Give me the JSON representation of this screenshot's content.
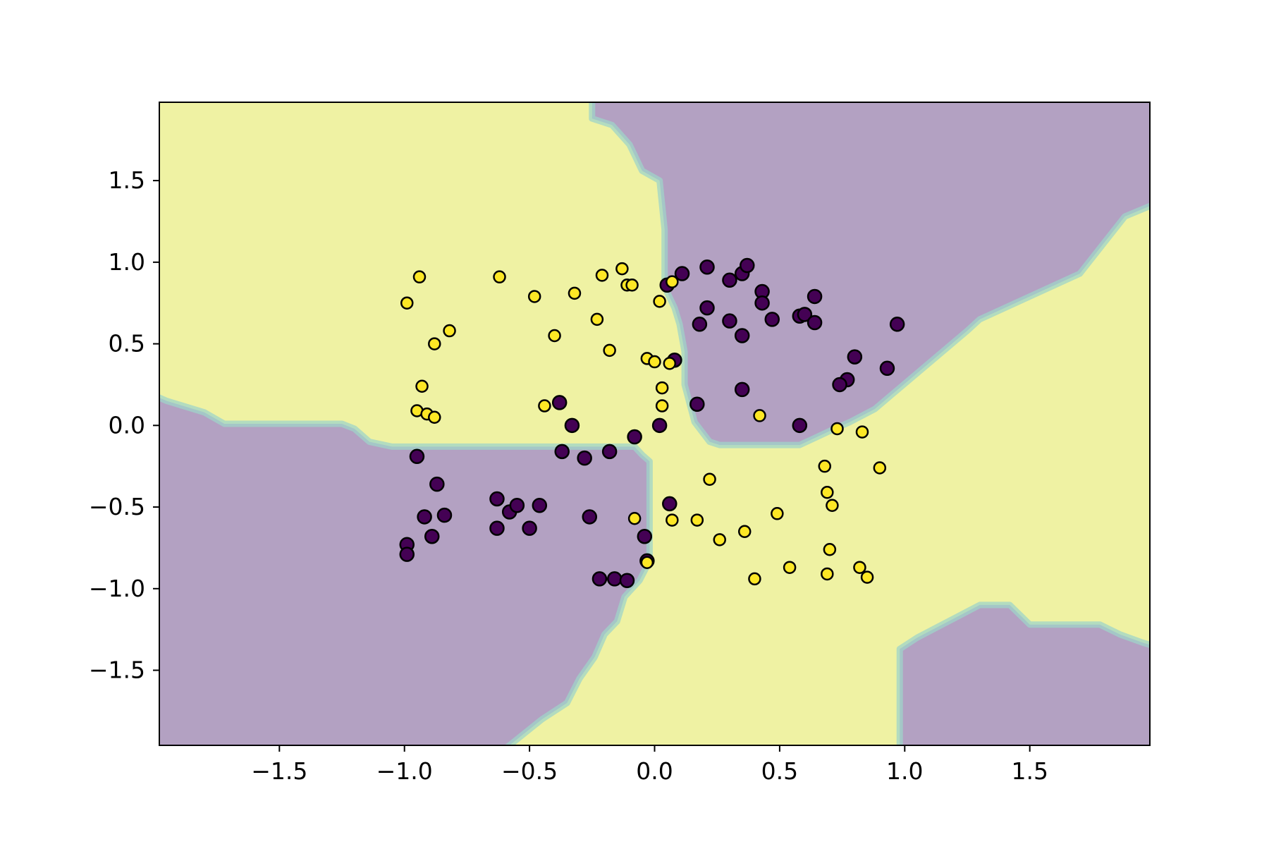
{
  "chart_data": {
    "type": "scatter",
    "title": "",
    "xlabel": "",
    "ylabel": "",
    "xlim": [
      -1.98,
      1.98
    ],
    "ylim": [
      -1.96,
      1.98
    ],
    "grid": false,
    "xticks": [
      -1.5,
      -1.0,
      -0.5,
      0.0,
      0.5,
      1.0,
      1.5
    ],
    "yticks": [
      -1.5,
      -1.0,
      -0.5,
      0.0,
      0.5,
      1.0,
      1.5
    ],
    "xtick_labels": [
      "−1.5",
      "−1.0",
      "−0.5",
      "0.0",
      "0.5",
      "1.0",
      "1.5"
    ],
    "ytick_labels": [
      "−1.5",
      "−1.0",
      "−0.5",
      "0.0",
      "0.5",
      "1.0",
      "1.5"
    ],
    "background": "decision regions (XOR-like: yellow in top-left and bottom-right, purple in top-right and bottom-left)",
    "colors": {
      "class_0": "#440154",
      "class_1": "#fde725",
      "region_0": "#b3a1c2",
      "region_1": "#eff2a3",
      "boundary_band": "#9fd4c8",
      "marker_edge": "#000000"
    },
    "series": [
      {
        "class": 0,
        "points": [
          [
            0.05,
            0.86
          ],
          [
            0.11,
            0.93
          ],
          [
            0.21,
            0.97
          ],
          [
            0.3,
            0.89
          ],
          [
            0.35,
            0.93
          ],
          [
            0.37,
            0.98
          ],
          [
            0.43,
            0.82
          ],
          [
            0.43,
            0.75
          ],
          [
            0.64,
            0.79
          ],
          [
            0.21,
            0.72
          ],
          [
            0.3,
            0.64
          ],
          [
            0.47,
            0.65
          ],
          [
            0.58,
            0.67
          ],
          [
            0.6,
            0.68
          ],
          [
            0.64,
            0.63
          ],
          [
            0.18,
            0.62
          ],
          [
            0.35,
            0.55
          ],
          [
            0.97,
            0.62
          ],
          [
            0.08,
            0.4
          ],
          [
            0.8,
            0.42
          ],
          [
            0.93,
            0.35
          ],
          [
            0.77,
            0.28
          ],
          [
            0.74,
            0.25
          ],
          [
            0.35,
            0.22
          ],
          [
            0.17,
            0.13
          ],
          [
            0.58,
            0.0
          ],
          [
            0.02,
            0.0
          ],
          [
            -0.08,
            -0.07
          ],
          [
            -0.38,
            0.14
          ],
          [
            -0.33,
            0.0
          ],
          [
            -0.37,
            -0.16
          ],
          [
            -0.28,
            -0.2
          ],
          [
            -0.18,
            -0.16
          ],
          [
            -0.95,
            -0.19
          ],
          [
            -0.87,
            -0.36
          ],
          [
            -0.63,
            -0.45
          ],
          [
            -0.58,
            -0.53
          ],
          [
            -0.55,
            -0.49
          ],
          [
            -0.46,
            -0.49
          ],
          [
            -0.92,
            -0.56
          ],
          [
            -0.84,
            -0.55
          ],
          [
            -0.26,
            -0.56
          ],
          [
            -0.63,
            -0.63
          ],
          [
            -0.5,
            -0.63
          ],
          [
            -0.89,
            -0.68
          ],
          [
            -0.04,
            -0.68
          ],
          [
            -0.99,
            -0.73
          ],
          [
            -0.99,
            -0.79
          ],
          [
            -0.03,
            -0.83
          ],
          [
            -0.22,
            -0.94
          ],
          [
            -0.16,
            -0.94
          ],
          [
            -0.11,
            -0.95
          ],
          [
            0.06,
            -0.48
          ]
        ]
      },
      {
        "class": 1,
        "points": [
          [
            -0.94,
            0.91
          ],
          [
            -0.99,
            0.75
          ],
          [
            -0.62,
            0.91
          ],
          [
            -0.48,
            0.79
          ],
          [
            -0.32,
            0.81
          ],
          [
            -0.21,
            0.92
          ],
          [
            -0.13,
            0.96
          ],
          [
            -0.11,
            0.86
          ],
          [
            -0.09,
            0.86
          ],
          [
            0.07,
            0.88
          ],
          [
            0.02,
            0.76
          ],
          [
            -0.23,
            0.65
          ],
          [
            -0.82,
            0.58
          ],
          [
            -0.88,
            0.5
          ],
          [
            -0.4,
            0.55
          ],
          [
            -0.18,
            0.46
          ],
          [
            -0.03,
            0.41
          ],
          [
            0.0,
            0.39
          ],
          [
            0.06,
            0.38
          ],
          [
            -0.93,
            0.24
          ],
          [
            -0.95,
            0.09
          ],
          [
            -0.91,
            0.07
          ],
          [
            -0.88,
            0.05
          ],
          [
            -0.44,
            0.12
          ],
          [
            0.03,
            0.23
          ],
          [
            0.03,
            0.12
          ],
          [
            0.42,
            0.06
          ],
          [
            0.73,
            -0.02
          ],
          [
            0.83,
            -0.04
          ],
          [
            0.22,
            -0.33
          ],
          [
            0.68,
            -0.25
          ],
          [
            0.9,
            -0.26
          ],
          [
            0.69,
            -0.41
          ],
          [
            0.71,
            -0.49
          ],
          [
            0.49,
            -0.54
          ],
          [
            -0.08,
            -0.57
          ],
          [
            0.07,
            -0.58
          ],
          [
            0.17,
            -0.58
          ],
          [
            0.36,
            -0.65
          ],
          [
            0.26,
            -0.7
          ],
          [
            0.7,
            -0.76
          ],
          [
            -0.03,
            -0.84
          ],
          [
            0.54,
            -0.87
          ],
          [
            0.82,
            -0.87
          ],
          [
            0.69,
            -0.91
          ],
          [
            0.4,
            -0.94
          ],
          [
            0.85,
            -0.93
          ]
        ]
      }
    ]
  }
}
